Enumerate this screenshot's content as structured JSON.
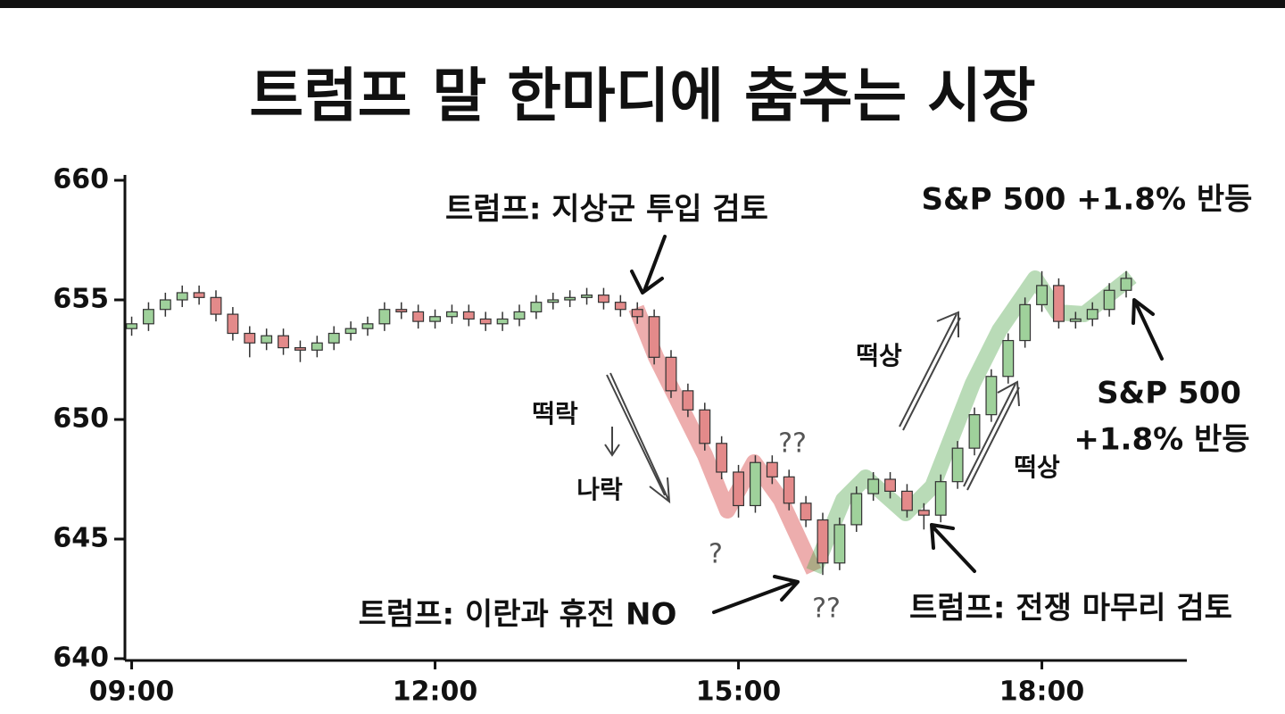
{
  "chart_data": {
    "type": "candlestick",
    "title": "트럼프 말 한마디에 춤추는 시장",
    "x": [
      540,
      550,
      560,
      570,
      580,
      590,
      600,
      610,
      620,
      630,
      640,
      650,
      660,
      670,
      680,
      690,
      700,
      710,
      720,
      730,
      740,
      750,
      760,
      770,
      780,
      790,
      800,
      810,
      820,
      830,
      840,
      850,
      860,
      870,
      880,
      890,
      900,
      910,
      920,
      930,
      940,
      950,
      960,
      970,
      980,
      990,
      1000,
      1010,
      1020,
      1030,
      1040,
      1050,
      1060,
      1070,
      1080,
      1090,
      1100,
      1110,
      1120,
      1130
    ],
    "open": [
      653.8,
      654.0,
      654.6,
      655.0,
      655.3,
      655.1,
      654.4,
      653.6,
      653.2,
      653.5,
      653.0,
      652.9,
      653.2,
      653.6,
      653.8,
      654.0,
      654.6,
      654.5,
      654.1,
      654.3,
      654.5,
      654.2,
      654.0,
      654.2,
      654.5,
      654.9,
      655.0,
      655.1,
      655.2,
      654.9,
      654.6,
      654.3,
      652.6,
      651.2,
      650.4,
      649.0,
      647.8,
      646.4,
      648.2,
      647.6,
      646.5,
      645.8,
      644.0,
      645.6,
      646.9,
      647.5,
      647.0,
      646.2,
      646.0,
      647.4,
      648.8,
      650.2,
      651.8,
      653.3,
      654.8,
      655.6,
      654.1,
      654.2,
      654.6,
      655.4
    ],
    "high": [
      654.3,
      654.9,
      655.3,
      655.6,
      655.6,
      655.4,
      654.7,
      653.9,
      653.8,
      653.8,
      653.3,
      653.5,
      653.9,
      654.1,
      654.3,
      654.9,
      654.9,
      654.8,
      654.6,
      654.8,
      654.8,
      654.5,
      654.5,
      654.8,
      655.2,
      655.3,
      655.4,
      655.5,
      655.5,
      655.2,
      654.9,
      654.6,
      652.9,
      651.5,
      650.7,
      649.3,
      648.1,
      648.5,
      648.5,
      647.9,
      646.8,
      646.1,
      645.9,
      647.2,
      647.8,
      647.8,
      647.3,
      646.5,
      647.7,
      649.1,
      650.5,
      652.1,
      653.6,
      655.1,
      656.2,
      655.9,
      654.5,
      654.9,
      655.7,
      656.2
    ],
    "low": [
      653.5,
      653.7,
      654.3,
      654.7,
      654.8,
      654.1,
      653.3,
      652.6,
      652.9,
      652.7,
      652.4,
      652.6,
      652.9,
      653.3,
      653.5,
      653.7,
      654.2,
      653.8,
      653.8,
      654.0,
      653.9,
      653.7,
      653.7,
      653.9,
      654.2,
      654.6,
      654.7,
      654.8,
      654.6,
      654.3,
      654.0,
      652.3,
      650.9,
      650.1,
      648.7,
      647.5,
      645.9,
      646.1,
      647.3,
      646.2,
      645.5,
      643.5,
      643.7,
      645.3,
      646.6,
      646.7,
      645.9,
      645.4,
      645.7,
      647.1,
      648.5,
      649.9,
      651.5,
      653.0,
      654.5,
      653.8,
      653.8,
      653.9,
      654.3,
      655.1
    ],
    "close": [
      654.0,
      654.6,
      655.0,
      655.3,
      655.1,
      654.4,
      653.6,
      653.2,
      653.5,
      653.0,
      652.9,
      653.2,
      653.6,
      653.8,
      654.0,
      654.6,
      654.5,
      654.1,
      654.3,
      654.5,
      654.2,
      654.0,
      654.2,
      654.5,
      654.9,
      655.0,
      655.1,
      655.2,
      654.9,
      654.6,
      654.3,
      652.6,
      651.2,
      650.4,
      649.0,
      647.8,
      646.4,
      648.2,
      647.6,
      646.5,
      645.8,
      644.0,
      645.6,
      646.9,
      647.5,
      647.0,
      646.2,
      646.0,
      647.4,
      648.8,
      650.2,
      651.8,
      653.3,
      654.8,
      655.6,
      654.1,
      654.2,
      654.6,
      655.4,
      655.9
    ],
    "up_color": "#9fd19b",
    "down_color": "#e38a8a",
    "xlim": [
      536,
      1166
    ],
    "xticks": [
      {
        "value": 540,
        "label": "09:00"
      },
      {
        "value": 720,
        "label": "12:00"
      },
      {
        "value": 900,
        "label": "15:00"
      },
      {
        "value": 1080,
        "label": "18:00"
      }
    ],
    "ylim": [
      640,
      660
    ],
    "yticks": [
      640,
      645,
      650,
      655,
      660
    ],
    "annotations": [
      "트럼프: 지상군 투입 검토",
      "S&P 500 +1.8% 반등",
      "떡락",
      "나락",
      "떡상",
      "떡상",
      "S&P 500",
      "+1.8% 반등",
      "트럼프: 이란과 휴전 NO",
      "트럼프: 전쟁 마무리 검토",
      "??",
      "?",
      "??"
    ]
  }
}
